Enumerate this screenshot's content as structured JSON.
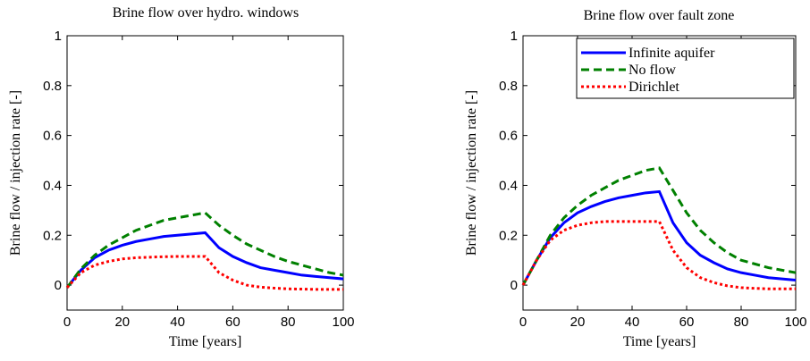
{
  "chart_data": [
    {
      "type": "line",
      "title": "Brine flow over hydro. windows",
      "xlabel": "Time [years]",
      "ylabel": "Brine flow / injection rate [-]",
      "x": [
        0,
        5,
        10,
        15,
        20,
        25,
        30,
        35,
        40,
        45,
        50,
        55,
        60,
        65,
        70,
        75,
        80,
        85,
        90,
        95,
        100
      ],
      "xlim": [
        0,
        100
      ],
      "xticks": [
        0,
        20,
        40,
        60,
        80,
        100
      ],
      "ylim": [
        -0.1,
        1
      ],
      "yticks": [
        0,
        0.2,
        0.4,
        0.6,
        0.8,
        1
      ],
      "series": [
        {
          "color": "#0000ff",
          "style": "solid",
          "values": [
            -0.01,
            0.06,
            0.11,
            0.14,
            0.16,
            0.175,
            0.185,
            0.195,
            0.2,
            0.205,
            0.21,
            0.15,
            0.115,
            0.09,
            0.07,
            0.06,
            0.05,
            0.04,
            0.035,
            0.03,
            0.025
          ]
        },
        {
          "color": "#008000",
          "style": "dashed",
          "values": [
            -0.01,
            0.065,
            0.12,
            0.16,
            0.19,
            0.22,
            0.24,
            0.26,
            0.27,
            0.28,
            0.29,
            0.24,
            0.2,
            0.165,
            0.14,
            0.115,
            0.095,
            0.08,
            0.065,
            0.05,
            0.04
          ]
        },
        {
          "color": "#ff0000",
          "style": "dotted",
          "values": [
            -0.01,
            0.05,
            0.08,
            0.095,
            0.105,
            0.11,
            0.112,
            0.114,
            0.115,
            0.115,
            0.115,
            0.05,
            0.02,
            0.0,
            -0.008,
            -0.012,
            -0.015,
            -0.016,
            -0.017,
            -0.017,
            -0.017
          ]
        }
      ]
    },
    {
      "type": "line",
      "title": "Brine flow over fault zone",
      "xlabel": "Time [years]",
      "ylabel": "Brine flow / injection rate [-]",
      "x": [
        0,
        5,
        10,
        15,
        20,
        25,
        30,
        35,
        40,
        45,
        50,
        55,
        60,
        65,
        70,
        75,
        80,
        85,
        90,
        95,
        100
      ],
      "xlim": [
        0,
        100
      ],
      "xticks": [
        0,
        20,
        40,
        60,
        80,
        100
      ],
      "ylim": [
        -0.1,
        1
      ],
      "yticks": [
        0,
        0.2,
        0.4,
        0.6,
        0.8,
        1
      ],
      "legend": "upper right",
      "series": [
        {
          "name": "Infinite aquifer",
          "color": "#0000ff",
          "style": "solid",
          "values": [
            0,
            0.1,
            0.19,
            0.25,
            0.29,
            0.315,
            0.335,
            0.35,
            0.36,
            0.37,
            0.375,
            0.25,
            0.17,
            0.12,
            0.09,
            0.065,
            0.05,
            0.04,
            0.03,
            0.025,
            0.02
          ]
        },
        {
          "name": "No flow",
          "color": "#008000",
          "style": "dashed",
          "values": [
            0,
            0.1,
            0.2,
            0.27,
            0.32,
            0.36,
            0.39,
            0.42,
            0.44,
            0.46,
            0.47,
            0.38,
            0.29,
            0.22,
            0.17,
            0.13,
            0.1,
            0.085,
            0.07,
            0.06,
            0.05
          ]
        },
        {
          "name": "Dirichlet",
          "color": "#ff0000",
          "style": "dotted",
          "values": [
            0,
            0.1,
            0.18,
            0.22,
            0.24,
            0.25,
            0.255,
            0.255,
            0.255,
            0.255,
            0.255,
            0.14,
            0.07,
            0.03,
            0.01,
            -0.003,
            -0.01,
            -0.013,
            -0.015,
            -0.015,
            -0.015
          ]
        }
      ]
    }
  ]
}
